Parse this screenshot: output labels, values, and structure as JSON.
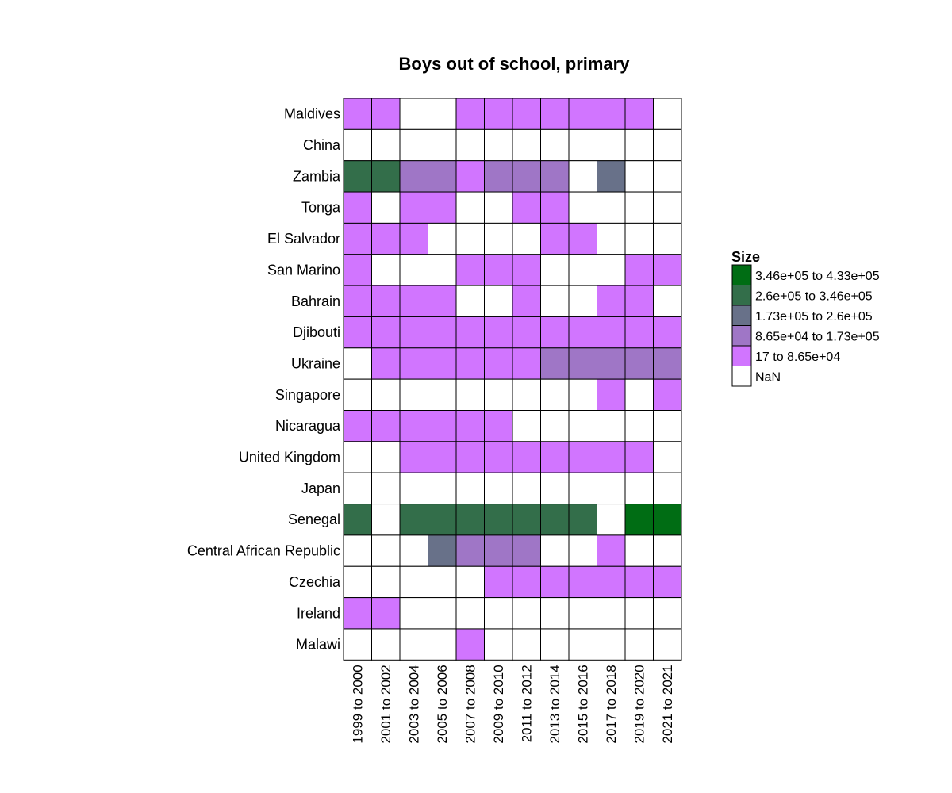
{
  "chart_data": {
    "type": "heatmap",
    "title": "Boys out of school, primary",
    "x_categories": [
      "1999 to 2000",
      "2001 to 2002",
      "2003 to 2004",
      "2005 to 2006",
      "2007 to 2008",
      "2009 to 2010",
      "2011 to 2012",
      "2013 to 2014",
      "2015 to 2016",
      "2017 to 2018",
      "2019 to 2020",
      "2021 to 2021"
    ],
    "y_categories": [
      "Maldives",
      "China",
      "Zambia",
      "Tonga",
      "El Salvador",
      "San Marino",
      "Bahrain",
      "Djibouti",
      "Ukraine",
      "Singapore",
      "Nicaragua",
      "United Kingdom",
      "Japan",
      "Senegal",
      "Central African Republic",
      "Czechia",
      "Ireland",
      "Malawi"
    ],
    "bins": [
      {
        "label": "3.46e+05  to  4.33e+05",
        "color": "#006d14"
      },
      {
        "label": "2.6e+05  to  3.46e+05",
        "color": "#336e4a"
      },
      {
        "label": "1.73e+05  to  2.6e+05",
        "color": "#687189"
      },
      {
        "label": "8.65e+04  to  1.73e+05",
        "color": "#9f76c6"
      },
      {
        "label": "17  to  8.65e+04",
        "color": "#d175ff"
      },
      {
        "label": "NaN",
        "color": "#ffffff"
      }
    ],
    "legend_title": "Size",
    "legend_position": "right",
    "cells": [
      [
        4,
        4,
        5,
        5,
        4,
        4,
        4,
        4,
        4,
        4,
        4,
        5
      ],
      [
        5,
        5,
        5,
        5,
        5,
        5,
        5,
        5,
        5,
        5,
        5,
        5
      ],
      [
        1,
        1,
        3,
        3,
        4,
        3,
        3,
        3,
        5,
        2,
        5,
        5
      ],
      [
        4,
        5,
        4,
        4,
        5,
        5,
        4,
        4,
        5,
        5,
        5,
        5
      ],
      [
        4,
        4,
        4,
        5,
        5,
        5,
        5,
        4,
        4,
        5,
        5,
        5
      ],
      [
        4,
        5,
        5,
        5,
        4,
        4,
        4,
        5,
        5,
        5,
        4,
        4
      ],
      [
        4,
        4,
        4,
        4,
        5,
        5,
        4,
        5,
        5,
        4,
        4,
        5
      ],
      [
        4,
        4,
        4,
        4,
        4,
        4,
        4,
        4,
        4,
        4,
        4,
        4
      ],
      [
        5,
        4,
        4,
        4,
        4,
        4,
        4,
        3,
        3,
        3,
        3,
        3
      ],
      [
        5,
        5,
        5,
        5,
        5,
        5,
        5,
        5,
        5,
        4,
        5,
        4
      ],
      [
        4,
        4,
        4,
        4,
        4,
        4,
        5,
        5,
        5,
        5,
        5,
        5
      ],
      [
        5,
        5,
        4,
        4,
        4,
        4,
        4,
        4,
        4,
        4,
        4,
        5
      ],
      [
        5,
        5,
        5,
        5,
        5,
        5,
        5,
        5,
        5,
        5,
        5,
        5
      ],
      [
        1,
        5,
        1,
        1,
        1,
        1,
        1,
        1,
        1,
        5,
        0,
        0
      ],
      [
        5,
        5,
        5,
        2,
        3,
        3,
        3,
        5,
        5,
        4,
        5,
        5
      ],
      [
        5,
        5,
        5,
        5,
        5,
        4,
        4,
        4,
        4,
        4,
        4,
        4
      ],
      [
        4,
        4,
        5,
        5,
        5,
        5,
        5,
        5,
        5,
        5,
        5,
        5
      ],
      [
        5,
        5,
        5,
        5,
        4,
        5,
        5,
        5,
        5,
        5,
        5,
        5
      ]
    ]
  }
}
